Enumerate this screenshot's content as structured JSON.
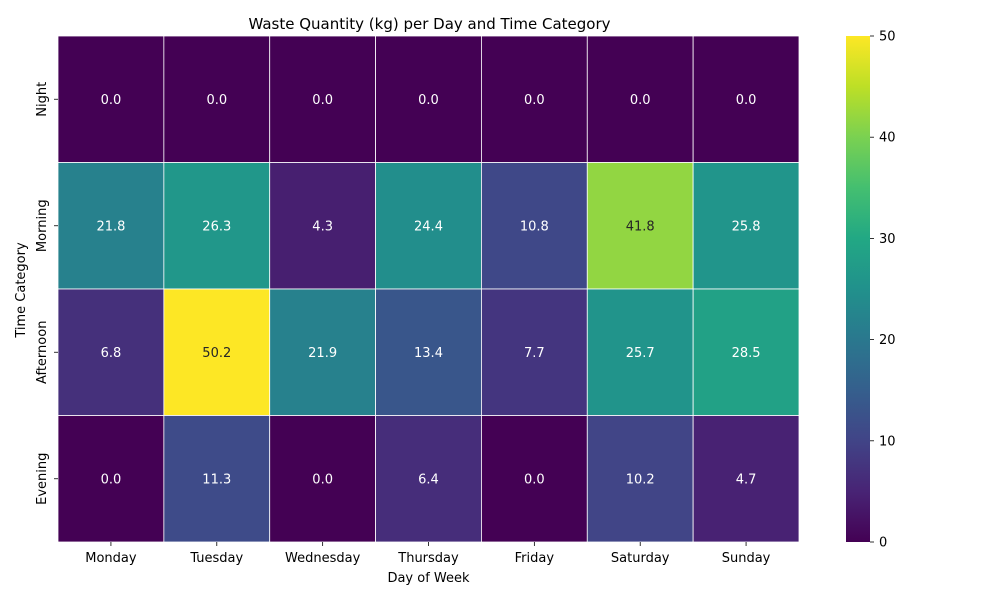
{
  "chart_data": {
    "type": "heatmap",
    "title": "Waste Quantity (kg) per Day and Time Category",
    "xlabel": "Day of Week",
    "ylabel": "Time Category",
    "x_categories": [
      "Monday",
      "Tuesday",
      "Wednesday",
      "Thursday",
      "Friday",
      "Saturday",
      "Sunday"
    ],
    "y_categories": [
      "Night",
      "Morning",
      "Afternoon",
      "Evening"
    ],
    "values": [
      [
        0.0,
        0.0,
        0.0,
        0.0,
        0.0,
        0.0,
        0.0
      ],
      [
        21.8,
        26.3,
        4.3,
        24.4,
        10.8,
        41.8,
        25.8
      ],
      [
        6.8,
        50.2,
        21.9,
        13.4,
        7.7,
        25.7,
        28.5
      ],
      [
        0.0,
        11.3,
        0.0,
        6.4,
        0.0,
        10.2,
        4.7
      ]
    ],
    "value_format": "0.0",
    "colormap": "viridis",
    "value_range": [
      0,
      50
    ],
    "colorbar_ticks": [
      0,
      10,
      20,
      30,
      40,
      50
    ]
  }
}
